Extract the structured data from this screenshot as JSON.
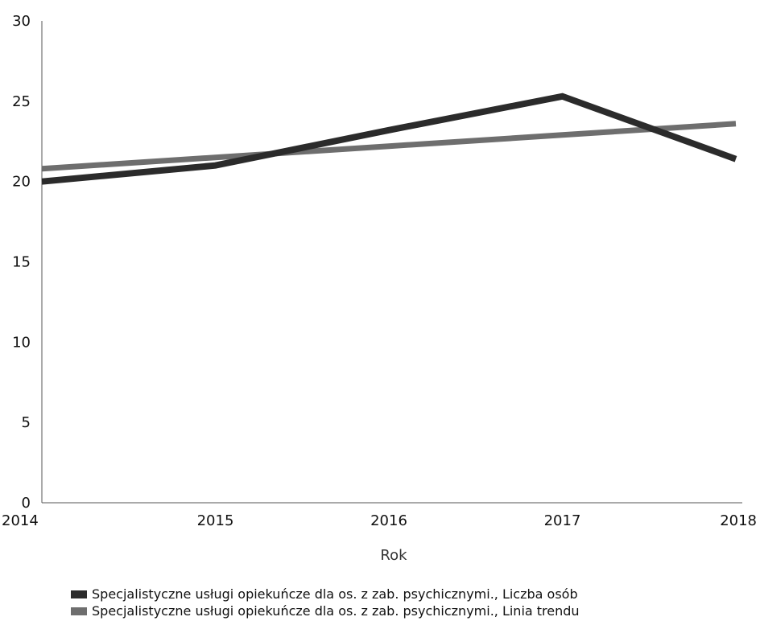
{
  "chart_data": {
    "type": "line",
    "title": "",
    "xlabel": "Rok",
    "ylabel": "",
    "x": [
      "2014",
      "2015",
      "2016",
      "2017",
      "2018"
    ],
    "ylim": [
      0,
      30
    ],
    "y_ticks": [
      "0",
      "5",
      "10",
      "15",
      "20",
      "25",
      "30"
    ],
    "grid": false,
    "legend_position": "bottom",
    "series": [
      {
        "name": "Specjalistyczne usługi opiekuńcze dla os. z zab. psychicznymi., Liczba osób",
        "values": [
          20,
          21,
          23.2,
          25.3,
          21.4
        ],
        "color": "#2b2b2b"
      },
      {
        "name": "Specjalistyczne usługi opiekuńcze dla os. z zab. psychicznymi., Linia trendu",
        "values": [
          20.8,
          21.5,
          22.2,
          22.9,
          23.6
        ],
        "color": "#6e6e6e"
      }
    ]
  }
}
